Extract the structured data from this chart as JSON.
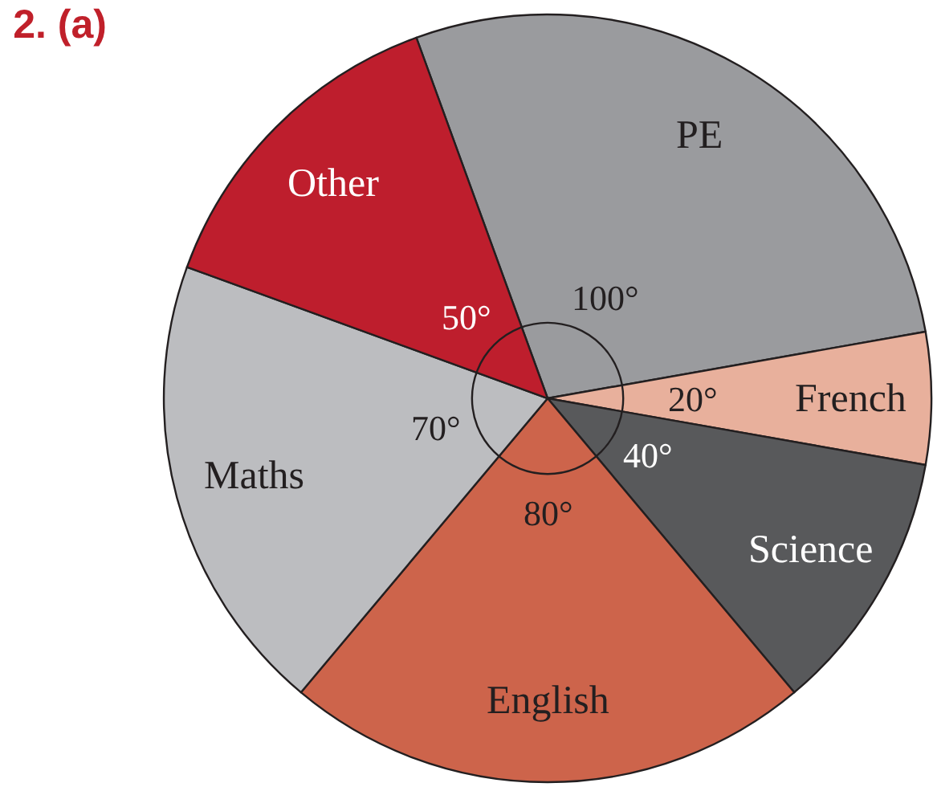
{
  "chart_data": {
    "type": "pie",
    "title": "2. (a)",
    "categories": [
      "PE",
      "French",
      "Science",
      "English",
      "Maths",
      "Other"
    ],
    "values": [
      100,
      20,
      40,
      80,
      70,
      50
    ],
    "colors": [
      "#9a9b9e",
      "#e8b09c",
      "#58595b",
      "#cd644b",
      "#bcbdc0",
      "#be1e2d"
    ],
    "value_labels": [
      "100°",
      "20°",
      "40°",
      "80°",
      "70°",
      "50°"
    ]
  }
}
